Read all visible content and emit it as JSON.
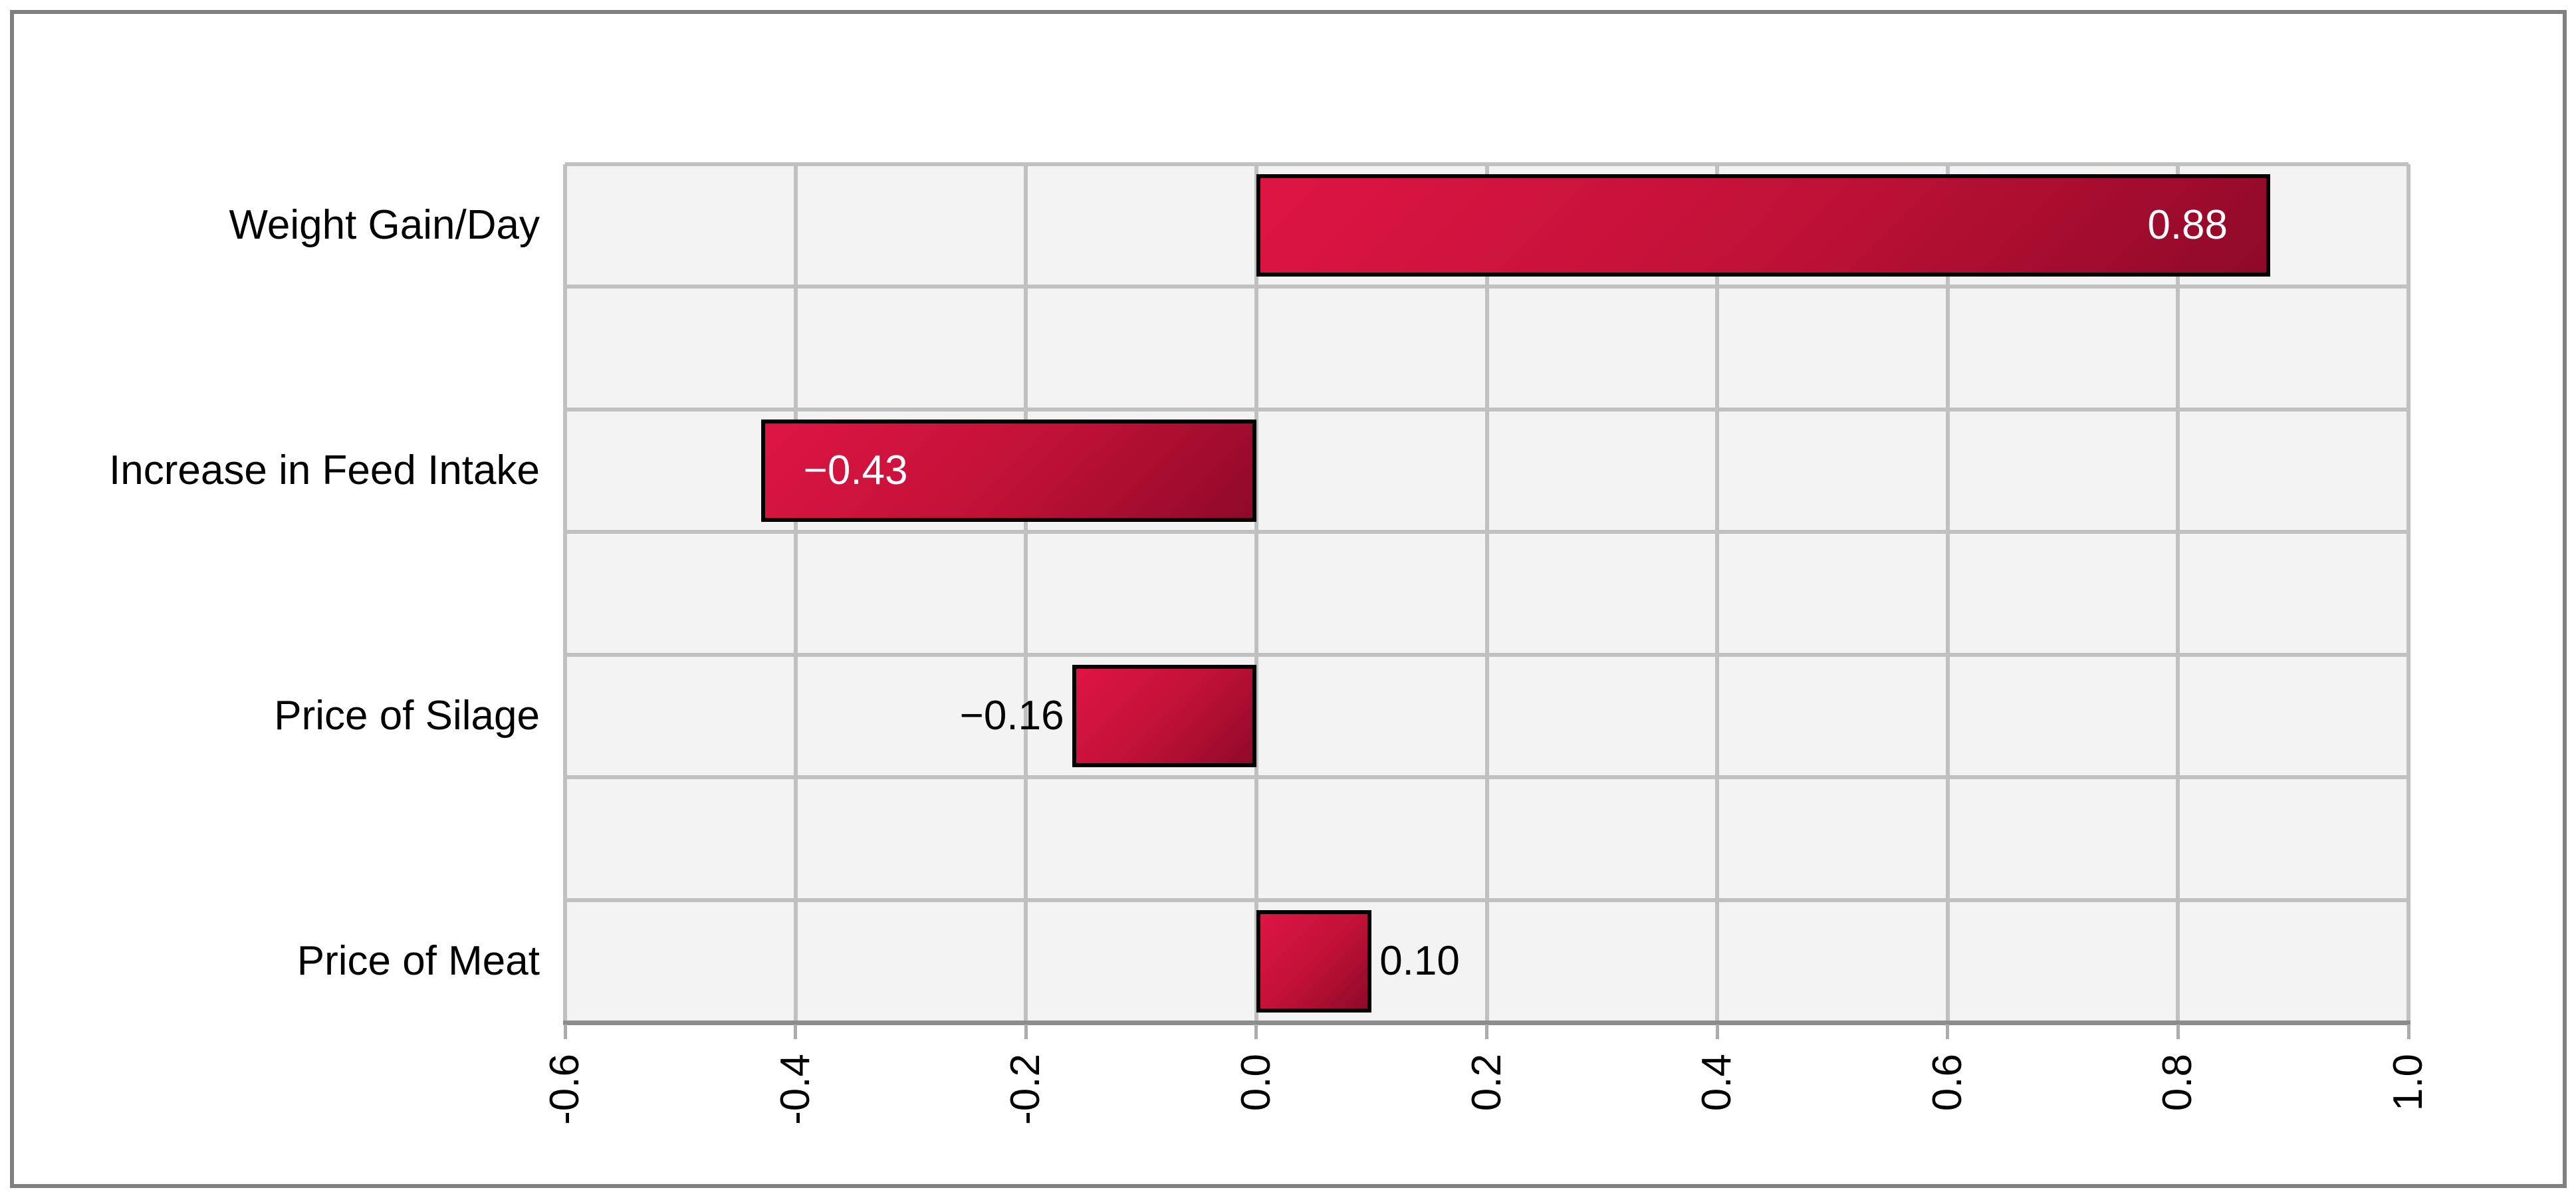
{
  "chart_data": {
    "type": "bar",
    "orientation": "horizontal",
    "title": "",
    "xlabel": "",
    "ylabel": "",
    "categories": [
      "Weight Gain/Day",
      "Increase in Feed Intake",
      "Price of Silage",
      "Price of Meat"
    ],
    "values": [
      0.88,
      -0.43,
      -0.16,
      0.1
    ],
    "value_labels": [
      "0.88",
      "−0.43",
      "−0.16",
      "0.10"
    ],
    "value_label_inside_bar": [
      true,
      true,
      false,
      false
    ],
    "xlim": [
      -0.6,
      1.0
    ],
    "x_ticks": [
      -0.6,
      -0.4,
      -0.2,
      0.0,
      0.2,
      0.4,
      0.6,
      0.8,
      1.0
    ],
    "x_tick_labels": [
      "-0.6",
      "-0.4",
      "-0.2",
      "0.0",
      "0.2",
      "0.4",
      "0.6",
      "0.8",
      "1.0"
    ],
    "grid": true,
    "legend": false
  },
  "colors": {
    "figure_background": "#ffffff",
    "figure_border": "#808080",
    "plot_background": "#f3f3f3",
    "gridline": "#c0c0c0",
    "axis_line": "#8c8c8c",
    "tick_mark": "#ababab",
    "bar_gradient_start": "#de1544",
    "bar_gradient_mid": "#c11137",
    "bar_gradient_end": "#8f0929",
    "bar_border": "#000000",
    "bar_label_inside": "#ffffff",
    "bar_label_outside": "#000000",
    "category_text": "#000000"
  }
}
